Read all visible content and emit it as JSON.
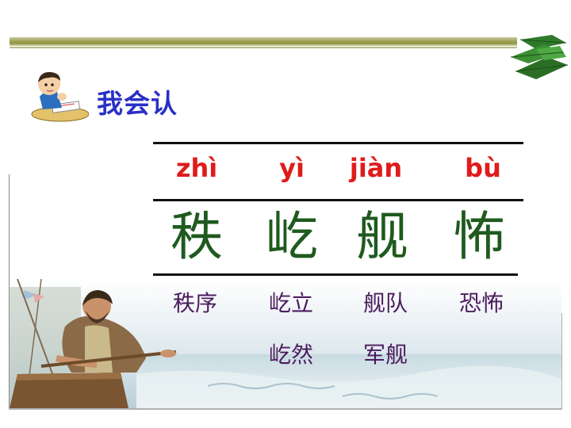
{
  "heading": "我会认",
  "characters": [
    {
      "pinyin": "zhì",
      "hanzi": "秩",
      "words": [
        "秩序"
      ]
    },
    {
      "pinyin": "yì",
      "hanzi": "屹",
      "words": [
        "屹立",
        "屹然"
      ]
    },
    {
      "pinyin": "jiàn",
      "hanzi": "舰",
      "words": [
        "舰队",
        "军舰"
      ]
    },
    {
      "pinyin": "bù",
      "hanzi": "怖",
      "words": [
        "恐怖"
      ]
    }
  ],
  "colors": {
    "heading": "#2a2fc6",
    "pinyin": "#e01b1b",
    "hanzi": "#1f5a1f",
    "words": "#4b1c5e",
    "bar": "#8e9440"
  },
  "icons": [
    "boy-reading-icon",
    "green-leaves-icon"
  ],
  "illustration": "man-rowing-boat-at-sea"
}
